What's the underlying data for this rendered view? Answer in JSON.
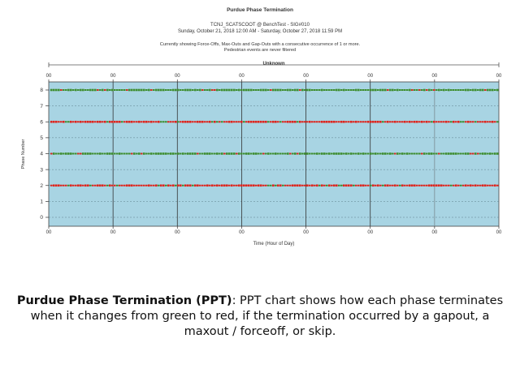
{
  "chart_data": {
    "type": "scatter",
    "title": "Purdue Phase Termination",
    "subtitle_lines": [
      "TCNJ_SCATSCOOT @ BenchTest - SIG#010",
      "Sunday, October 21, 2018 12:00 AM - Saturday, October 27, 2018 11:59 PM"
    ],
    "note_lines": [
      "Currently showing Force-Offs, Max-Outs and Gap-Outs with a consecutive occurrence of 1 or more.",
      "Pedestrian events are never filtered"
    ],
    "plan_label": "Unknown",
    "xlabel": "Time (Hour of Day)",
    "ylabel": "Phase Number",
    "x_tick_labels": [
      "00",
      "00",
      "00",
      "00",
      "00",
      "00",
      "00",
      "00"
    ],
    "ylim": [
      0,
      8
    ],
    "y_ticks": [
      0,
      1,
      2,
      3,
      4,
      5,
      6,
      7,
      8
    ],
    "grid": true,
    "background_color": "#a8d4e3",
    "series": [
      {
        "phase": 8,
        "color": "#3e8e2f",
        "accent": "#d03020"
      },
      {
        "phase": 6,
        "color": "#e0251d",
        "accent": "#3e8e2f"
      },
      {
        "phase": 4,
        "color": "#3e8e2f",
        "accent": "#d03020"
      },
      {
        "phase": 2,
        "color": "#e0251d",
        "accent": "#3e8e2f"
      }
    ]
  },
  "caption": {
    "bold": "Purdue Phase Termination (PPT)",
    "rest": ": PPT chart shows how each phase terminates when it changes from green to red, if the termination occurred by a gapout, a maxout / forceoff, or skip."
  }
}
